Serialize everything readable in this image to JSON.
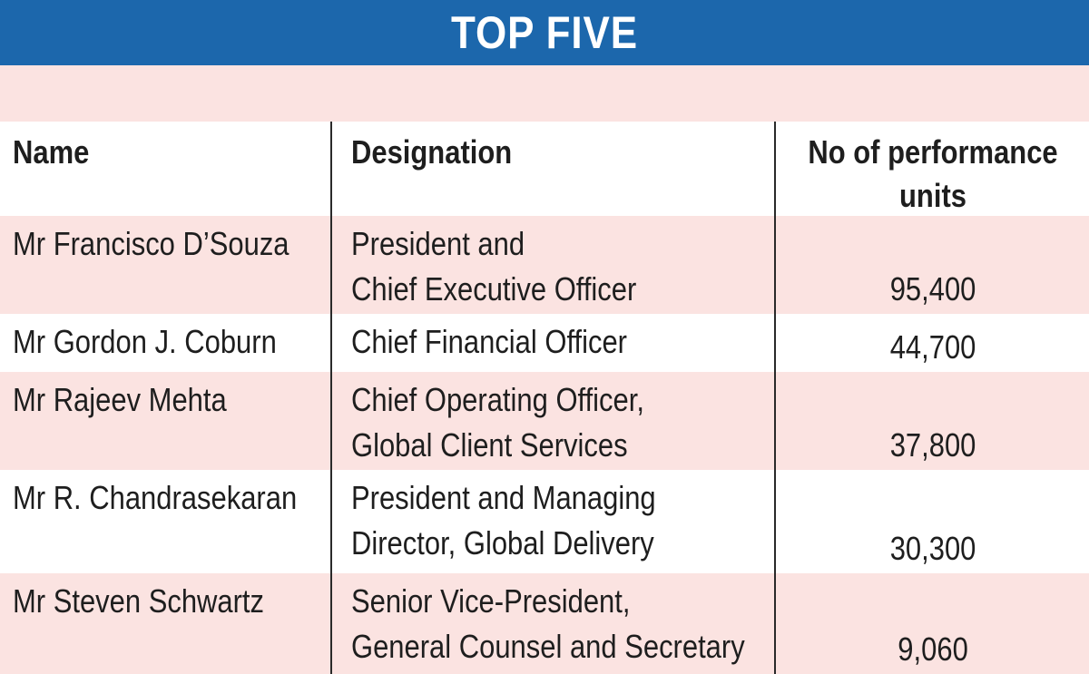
{
  "title": "TOP FIVE",
  "headers": {
    "name": "Name",
    "designation": "Designation",
    "units_line1": "No of performance",
    "units_line2": "units"
  },
  "rows": [
    {
      "name": "Mr Francisco D’Souza",
      "designation": [
        "President and",
        "Chief Executive Officer"
      ],
      "units": "95,400"
    },
    {
      "name": "Mr Gordon J. Coburn",
      "designation": [
        "Chief Financial Officer"
      ],
      "units": "44,700"
    },
    {
      "name": "Mr Rajeev Mehta",
      "designation": [
        "Chief Operating Officer,",
        "Global Client Services"
      ],
      "units": "37,800"
    },
    {
      "name": "Mr R. Chandrasekaran",
      "designation": [
        "President and Managing",
        "Director, Global Delivery"
      ],
      "units": "30,300"
    },
    {
      "name": "Mr Steven Schwartz",
      "designation": [
        "Senior Vice-President,",
        "General Counsel and Secretary"
      ],
      "units": "9,060"
    }
  ],
  "colors": {
    "banner": "#1c67ac",
    "stripe": "#fbe3e1",
    "text": "#1e1e1e"
  }
}
